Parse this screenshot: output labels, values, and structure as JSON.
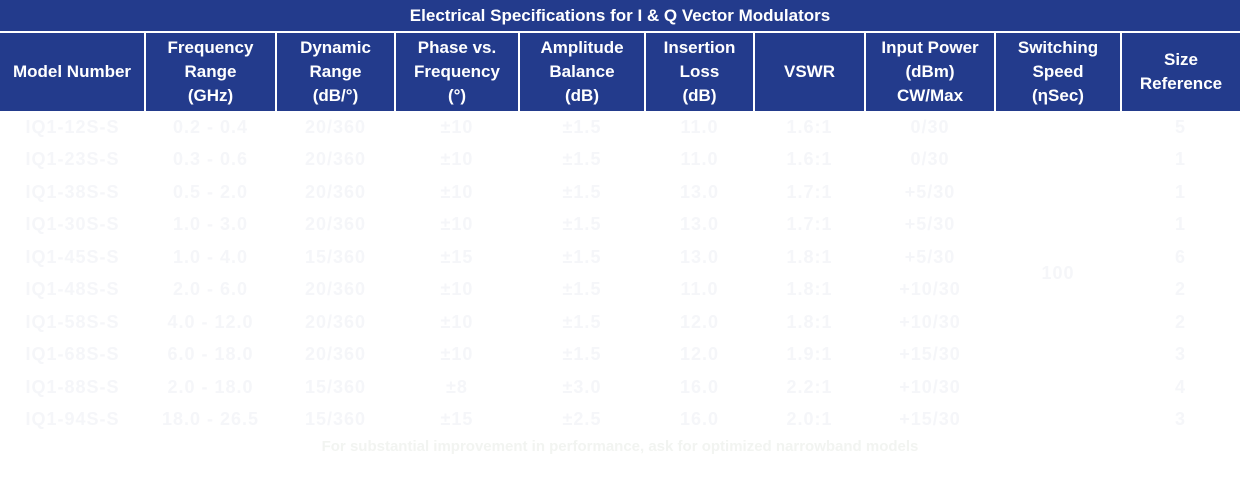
{
  "title": "Electrical Specifications for I & Q Vector Modulators",
  "headers": [
    {
      "line1": "Model Number",
      "line2": "",
      "line3": ""
    },
    {
      "line1": "Frequency",
      "line2": "Range",
      "line3": "(GHz)"
    },
    {
      "line1": "Dynamic",
      "line2": "Range",
      "line3": "(dB/°)"
    },
    {
      "line1": "Phase vs.",
      "line2": "Frequency",
      "line3": "(°)"
    },
    {
      "line1": "Amplitude",
      "line2": "Balance",
      "line3": "(dB)"
    },
    {
      "line1": "Insertion",
      "line2": "Loss",
      "line3": "(dB)"
    },
    {
      "line1": "VSWR",
      "line2": "",
      "line3": ""
    },
    {
      "line1": "Input Power",
      "line2": "(dBm)",
      "line3": "CW/Max"
    },
    {
      "line1": "Switching",
      "line2": "Speed",
      "line3": "(ηSec)"
    },
    {
      "line1": "Size",
      "line2": "Reference",
      "line3": ""
    }
  ],
  "rows": [
    {
      "model": "IQ1-12S-S",
      "freq": "0.2 - 0.4",
      "dyn": "20/360",
      "phase": "±10",
      "amp": "±1.5",
      "loss": "11.0",
      "vswr": "1.6:1",
      "power": "0/30",
      "size": "5"
    },
    {
      "model": "IQ1-23S-S",
      "freq": "0.3 - 0.6",
      "dyn": "20/360",
      "phase": "±10",
      "amp": "±1.5",
      "loss": "11.0",
      "vswr": "1.6:1",
      "power": "0/30",
      "size": "1"
    },
    {
      "model": "IQ1-38S-S",
      "freq": "0.5 - 2.0",
      "dyn": "20/360",
      "phase": "±10",
      "amp": "±1.5",
      "loss": "13.0",
      "vswr": "1.7:1",
      "power": "+5/30",
      "size": "1"
    },
    {
      "model": "IQ1-30S-S",
      "freq": "1.0 - 3.0",
      "dyn": "20/360",
      "phase": "±10",
      "amp": "±1.5",
      "loss": "13.0",
      "vswr": "1.7:1",
      "power": "+5/30",
      "size": "1"
    },
    {
      "model": "IQ1-45S-S",
      "freq": "1.0 - 4.0",
      "dyn": "15/360",
      "phase": "±15",
      "amp": "±1.5",
      "loss": "13.0",
      "vswr": "1.8:1",
      "power": "+5/30",
      "size": "6"
    },
    {
      "model": "IQ1-48S-S",
      "freq": "2.0 - 6.0",
      "dyn": "20/360",
      "phase": "±10",
      "amp": "±1.5",
      "loss": "11.0",
      "vswr": "1.8:1",
      "power": "+10/30",
      "size": "2"
    },
    {
      "model": "IQ1-58S-S",
      "freq": "4.0 - 12.0",
      "dyn": "20/360",
      "phase": "±10",
      "amp": "±1.5",
      "loss": "12.0",
      "vswr": "1.8:1",
      "power": "+10/30",
      "size": "2"
    },
    {
      "model": "IQ1-68S-S",
      "freq": "6.0 - 18.0",
      "dyn": "20/360",
      "phase": "±10",
      "amp": "±1.5",
      "loss": "12.0",
      "vswr": "1.9:1",
      "power": "+15/30",
      "size": "3"
    },
    {
      "model": "IQ1-88S-S",
      "freq": "2.0 - 18.0",
      "dyn": "15/360",
      "phase": "±8",
      "amp": "±3.0",
      "loss": "16.0",
      "vswr": "2.2:1",
      "power": "+10/30",
      "size": "4"
    },
    {
      "model": "IQ1-94S-S",
      "freq": "18.0 - 26.5",
      "dyn": "15/360",
      "phase": "±15",
      "amp": "±2.5",
      "loss": "16.0",
      "vswr": "2.0:1",
      "power": "+15/30",
      "size": "3"
    }
  ],
  "switching_speed": "100",
  "note": "For substantial improvement in performance, ask for optimized narrowband models"
}
